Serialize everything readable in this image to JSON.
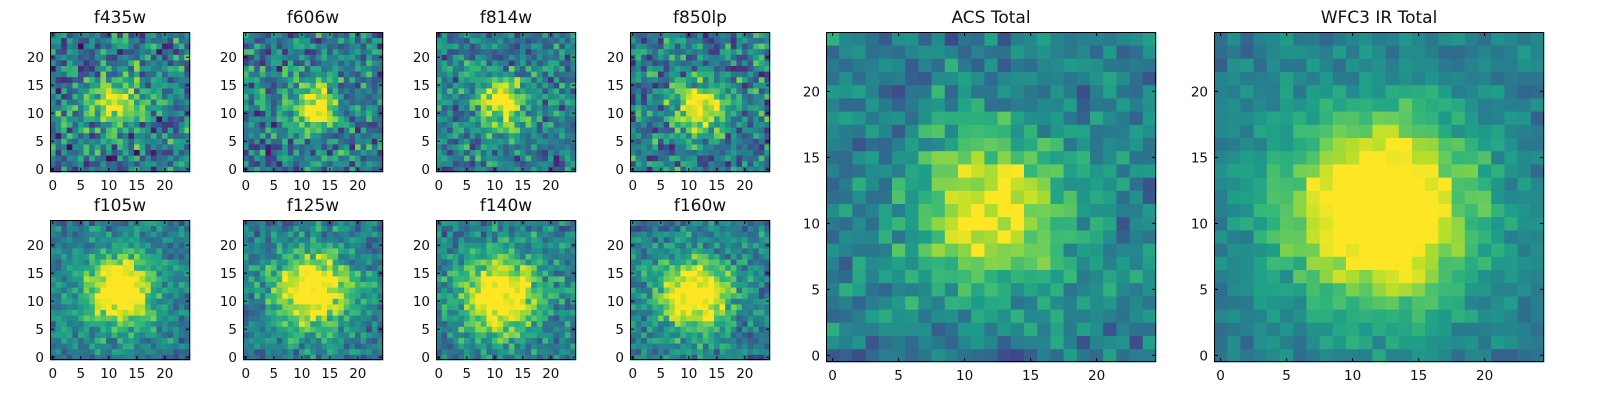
{
  "chart_data": [
    {
      "type": "heatmap",
      "title": "f435w",
      "xticks": [
        0,
        5,
        10,
        15,
        20
      ],
      "yticks": [
        0,
        5,
        10,
        15,
        20
      ],
      "xlim": [
        -0.5,
        24.5
      ],
      "ylim": [
        -0.5,
        24.5
      ],
      "grid_size": 25,
      "center": [
        11,
        12
      ],
      "peak": 0.55,
      "sigma": 3.0,
      "noise": 0.42,
      "seed": 11
    },
    {
      "type": "heatmap",
      "title": "f606w",
      "xticks": [
        0,
        5,
        10,
        15,
        20
      ],
      "yticks": [
        0,
        5,
        10,
        15,
        20
      ],
      "xlim": [
        -0.5,
        24.5
      ],
      "ylim": [
        -0.5,
        24.5
      ],
      "grid_size": 25,
      "center": [
        12,
        11
      ],
      "peak": 0.6,
      "sigma": 3.0,
      "noise": 0.38,
      "seed": 23
    },
    {
      "type": "heatmap",
      "title": "f814w",
      "xticks": [
        0,
        5,
        10,
        15,
        20
      ],
      "yticks": [
        0,
        5,
        10,
        15,
        20
      ],
      "xlim": [
        -0.5,
        24.5
      ],
      "ylim": [
        -0.5,
        24.5
      ],
      "grid_size": 25,
      "center": [
        11,
        12
      ],
      "peak": 0.65,
      "sigma": 3.2,
      "noise": 0.35,
      "seed": 37
    },
    {
      "type": "heatmap",
      "title": "f850lp",
      "xticks": [
        0,
        5,
        10,
        15,
        20
      ],
      "yticks": [
        0,
        5,
        10,
        15,
        20
      ],
      "xlim": [
        -0.5,
        24.5
      ],
      "ylim": [
        -0.5,
        24.5
      ],
      "grid_size": 25,
      "center": [
        12,
        11
      ],
      "peak": 0.6,
      "sigma": 3.2,
      "noise": 0.38,
      "seed": 41
    },
    {
      "type": "heatmap",
      "title": "f105w",
      "xticks": [
        0,
        5,
        10,
        15,
        20
      ],
      "yticks": [
        0,
        5,
        10,
        15,
        20
      ],
      "xlim": [
        -0.5,
        24.5
      ],
      "ylim": [
        -0.5,
        24.5
      ],
      "grid_size": 25,
      "center": [
        12,
        12
      ],
      "peak": 0.75,
      "sigma": 4.5,
      "noise": 0.25,
      "seed": 53
    },
    {
      "type": "heatmap",
      "title": "f125w",
      "xticks": [
        0,
        5,
        10,
        15,
        20
      ],
      "yticks": [
        0,
        5,
        10,
        15,
        20
      ],
      "xlim": [
        -0.5,
        24.5
      ],
      "ylim": [
        -0.5,
        24.5
      ],
      "grid_size": 25,
      "center": [
        12,
        12
      ],
      "peak": 0.75,
      "sigma": 4.8,
      "noise": 0.25,
      "seed": 67
    },
    {
      "type": "heatmap",
      "title": "f140w",
      "xticks": [
        0,
        5,
        10,
        15,
        20
      ],
      "yticks": [
        0,
        5,
        10,
        15,
        20
      ],
      "xlim": [
        -0.5,
        24.5
      ],
      "ylim": [
        -0.5,
        24.5
      ],
      "grid_size": 25,
      "center": [
        11,
        11
      ],
      "peak": 0.72,
      "sigma": 5.0,
      "noise": 0.27,
      "seed": 79
    },
    {
      "type": "heatmap",
      "title": "f160w",
      "xticks": [
        0,
        5,
        10,
        15,
        20
      ],
      "yticks": [
        0,
        5,
        10,
        15,
        20
      ],
      "xlim": [
        -0.5,
        24.5
      ],
      "ylim": [
        -0.5,
        24.5
      ],
      "grid_size": 25,
      "center": [
        11,
        11
      ],
      "peak": 0.75,
      "sigma": 4.5,
      "noise": 0.27,
      "seed": 83
    },
    {
      "type": "heatmap",
      "title": "ACS Total",
      "xticks": [
        0,
        5,
        10,
        15,
        20
      ],
      "yticks": [
        0,
        5,
        10,
        15,
        20
      ],
      "xlim": [
        -0.5,
        24.5
      ],
      "ylim": [
        -0.5,
        24.5
      ],
      "grid_size": 25,
      "center": [
        12,
        11
      ],
      "peak": 0.6,
      "sigma": 4.2,
      "noise": 0.22,
      "seed": 97
    },
    {
      "type": "heatmap",
      "title": "WFC3 IR Total",
      "xticks": [
        0,
        5,
        10,
        15,
        20
      ],
      "yticks": [
        0,
        5,
        10,
        15,
        20
      ],
      "xlim": [
        -0.5,
        24.5
      ],
      "ylim": [
        -0.5,
        24.5
      ],
      "grid_size": 25,
      "center": [
        12,
        11
      ],
      "peak": 0.85,
      "sigma": 5.0,
      "noise": 0.14,
      "seed": 101
    }
  ],
  "colormap": "viridis"
}
